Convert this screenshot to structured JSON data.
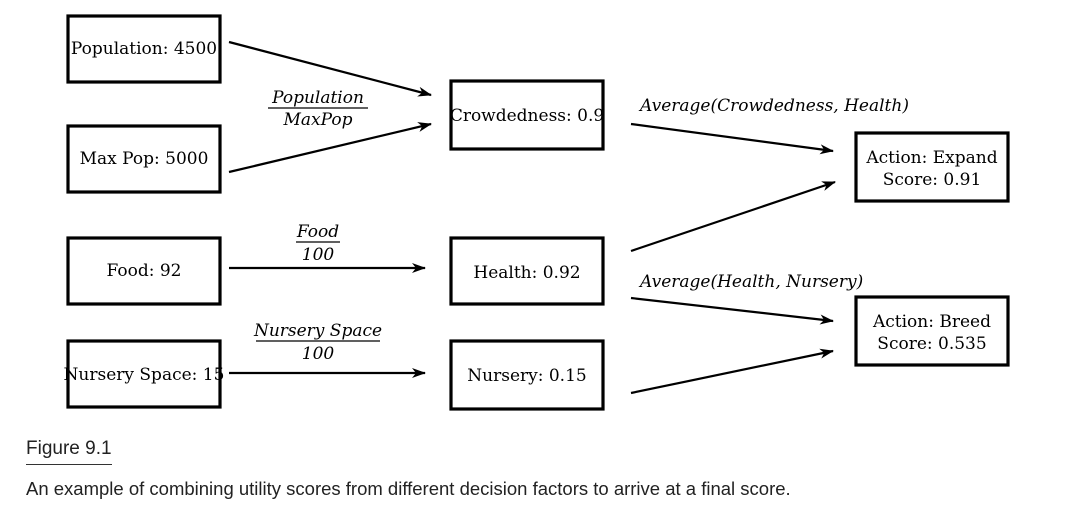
{
  "nodes": {
    "population": "Population: 4500",
    "max_pop": "Max Pop: 5000",
    "food": "Food: 92",
    "nursery_space": "Nursery Space: 15",
    "crowdedness": "Crowdedness: 0.9",
    "health": "Health: 0.92",
    "nursery": "Nursery: 0.15",
    "expand_action": "Action: Expand",
    "expand_score": "Score: 0.91",
    "breed_action": "Action: Breed",
    "breed_score": "Score: 0.535"
  },
  "formulas": {
    "crowdedness": {
      "numerator": "Population",
      "denominator": "MaxPop"
    },
    "health": {
      "numerator": "Food",
      "denominator": "100"
    },
    "nursery": {
      "numerator": "Nursery Space",
      "denominator": "100"
    },
    "expand": "Average(Crowdedness, Health)",
    "breed": "Average(Health, Nursery)"
  },
  "caption": {
    "figure_number": "Figure 9.1",
    "text": "An example of combining utility scores from different decision factors to arrive at a final score."
  }
}
